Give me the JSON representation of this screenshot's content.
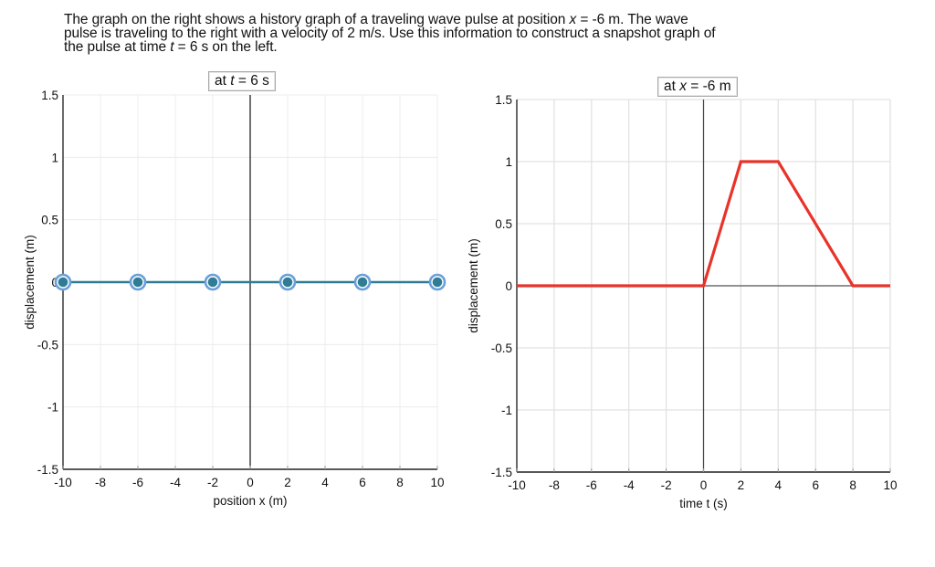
{
  "prompt": {
    "line1_pre": "The graph on the right shows a history graph of a traveling wave pulse at position ",
    "line1_var": "x",
    "line1_post": " = -6 m. The wave",
    "line2": "pulse is traveling to the right with a velocity of 2 m/s. Use this information to construct a snapshot graph of",
    "line3_pre": "the pulse at time ",
    "line3_var": "t",
    "line3_post": " = 6 s on the left."
  },
  "left_chart": {
    "tag_pre": "at ",
    "tag_var": "t",
    "tag_post": " = 6 s"
  },
  "right_chart": {
    "tag_pre": "at ",
    "tag_var": "x",
    "tag_post": " = -6 m"
  },
  "chart_data": [
    {
      "type": "line",
      "role": "snapshot graph (editable)",
      "title": "at t = 6 s",
      "xlabel": "position x (m)",
      "ylabel": "displacement (m)",
      "xlim": [
        -10,
        10
      ],
      "ylim": [
        -1.5,
        1.5
      ],
      "xticks": [
        -10,
        -8,
        -6,
        -4,
        -2,
        0,
        2,
        4,
        6,
        8,
        10
      ],
      "yticks": [
        -1.5,
        -1,
        -0.5,
        0,
        0.5,
        1,
        1.5
      ],
      "grid": true,
      "series": [
        {
          "name": "snapshot",
          "color": "#2e7d95",
          "marker_color": "#6a9fd8",
          "x": [
            -10,
            -6,
            -2,
            2,
            6,
            10
          ],
          "y": [
            0,
            0,
            0,
            0,
            0,
            0
          ]
        }
      ]
    },
    {
      "type": "line",
      "role": "history graph",
      "title": "at x = -6 m",
      "xlabel": "time t (s)",
      "ylabel": "displacement (m)",
      "xlim": [
        -10,
        10
      ],
      "ylim": [
        -1.5,
        1.5
      ],
      "xticks": [
        -10,
        -8,
        -6,
        -4,
        -2,
        0,
        2,
        4,
        6,
        8,
        10
      ],
      "yticks": [
        -1.5,
        -1,
        -0.5,
        0,
        0.5,
        1,
        1.5
      ],
      "grid": true,
      "series": [
        {
          "name": "history",
          "color": "#e8332a",
          "x": [
            -10,
            0,
            2,
            4,
            8,
            10
          ],
          "y": [
            0,
            0,
            1,
            1,
            0,
            0
          ]
        }
      ]
    }
  ]
}
